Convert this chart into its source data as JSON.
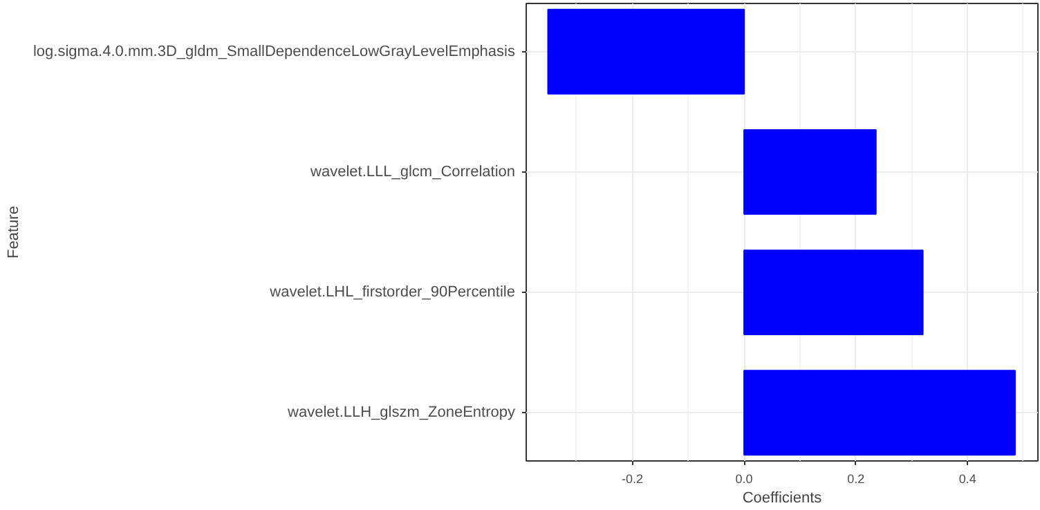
{
  "chart_data": {
    "type": "bar",
    "orientation": "horizontal",
    "xlabel": "Coefficients",
    "ylabel": "Feature",
    "categories": [
      "log.sigma.4.0.mm.3D_gldm_SmallDependenceLowGrayLevelEmphasis",
      "wavelet.LLL_glcm_Correlation",
      "wavelet.LHL_firstorder_90Percentile",
      "wavelet.LLH_glszm_ZoneEntropy"
    ],
    "values": [
      -0.351,
      0.236,
      0.32,
      0.485
    ],
    "color": "#0000ff",
    "xlim": [
      -0.39,
      0.526
    ],
    "xticks": [
      {
        "value": -0.2,
        "label": "-0.2"
      },
      {
        "value": 0.0,
        "label": "0.0"
      },
      {
        "value": 0.2,
        "label": "0.2"
      },
      {
        "value": 0.4,
        "label": "0.4"
      }
    ],
    "grid": true
  }
}
